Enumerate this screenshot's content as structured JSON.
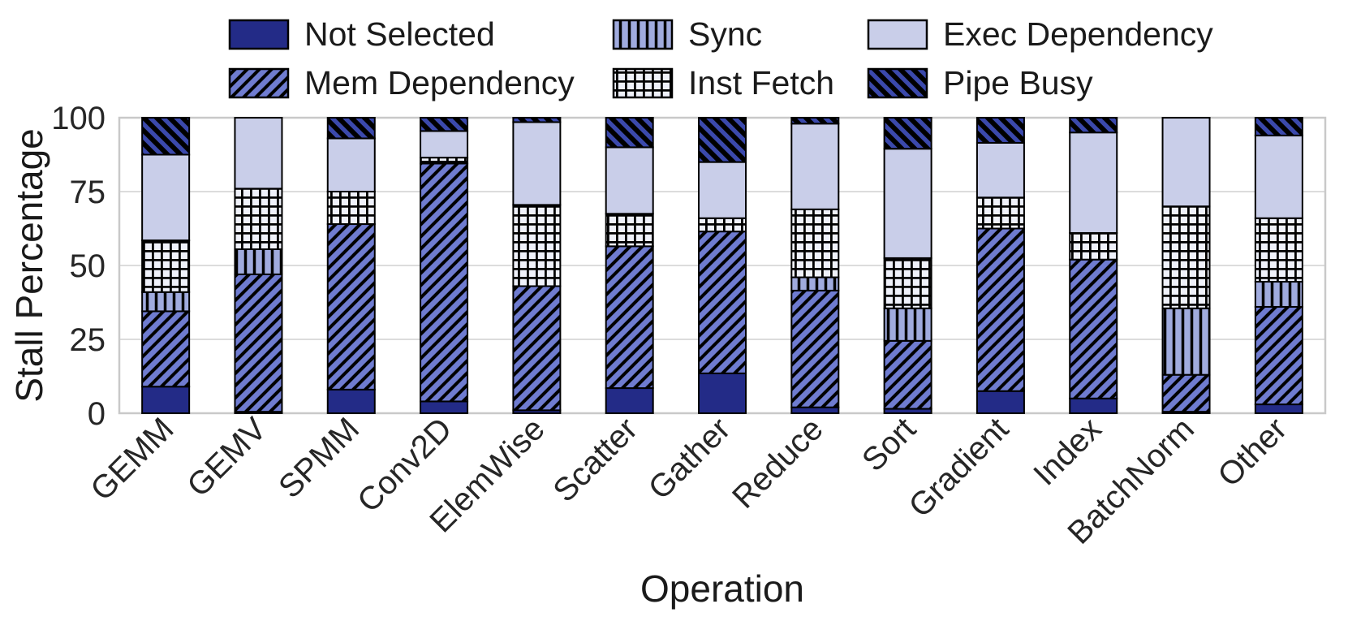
{
  "figure": {
    "background": "#ffffff",
    "grid_color": "#dcdcdc",
    "spine_color": "#c9c9c9",
    "tick_text_color": "#262626",
    "segment_border_color": "#000000"
  },
  "legend": {
    "columns": 3,
    "rows": [
      [
        "Not Selected",
        "Sync",
        "Exec Dependency"
      ],
      [
        "Mem Dependency",
        "Inst Fetch",
        "Pipe Busy"
      ]
    ]
  },
  "chart_data": {
    "type": "bar",
    "stacked": true,
    "title": "",
    "xlabel": "Operation",
    "ylabel": "Stall Percentage",
    "ylim": [
      0,
      100
    ],
    "ytick_labels": [
      "0",
      "25",
      "50",
      "75",
      "100"
    ],
    "ytick_values": [
      0,
      25,
      50,
      75,
      100
    ],
    "grid": true,
    "legend_position": "top",
    "categories": [
      "GEMM",
      "GEMV",
      "SPMM",
      "Conv2D",
      "ElemWise",
      "Scatter",
      "Gather",
      "Reduce",
      "Sort",
      "Gradient",
      "Index",
      "BatchNorm",
      "Other"
    ],
    "series": [
      {
        "name": "Not Selected",
        "pattern": "solid",
        "color": "#232b87",
        "values": [
          9,
          0.5,
          8,
          4,
          1,
          8.5,
          13.5,
          2,
          1.5,
          7.5,
          5,
          0.5,
          3
        ]
      },
      {
        "name": "Mem Dependency",
        "pattern": "diag-forward",
        "color": "#6f7cd0",
        "values": [
          25.5,
          46.5,
          56,
          80.5,
          42,
          48,
          48,
          39.5,
          23,
          55,
          47,
          12.5,
          33
        ]
      },
      {
        "name": "Sync",
        "pattern": "vertical",
        "color": "#a0abde",
        "values": [
          6.5,
          8.5,
          0,
          0,
          0,
          0,
          0,
          4.5,
          11,
          0,
          0,
          22.5,
          8.5
        ]
      },
      {
        "name": "Inst Fetch",
        "pattern": "grid",
        "color": "#eff1fa",
        "values": [
          17.5,
          20.5,
          11,
          2,
          27.5,
          11,
          4.5,
          23,
          17,
          10.5,
          9,
          34.5,
          21.5
        ]
      },
      {
        "name": "Exec Dependency",
        "pattern": "solid",
        "color": "#c9cee9",
        "values": [
          29,
          24,
          18,
          9,
          28,
          22.5,
          19,
          29,
          37,
          18.5,
          34,
          30,
          28
        ]
      },
      {
        "name": "Pipe Busy",
        "pattern": "diag-back",
        "color": "#3b49ac",
        "values": [
          12.5,
          0,
          7,
          4.5,
          1.5,
          10,
          15,
          2,
          10.5,
          8.5,
          5,
          0,
          6
        ]
      }
    ]
  }
}
